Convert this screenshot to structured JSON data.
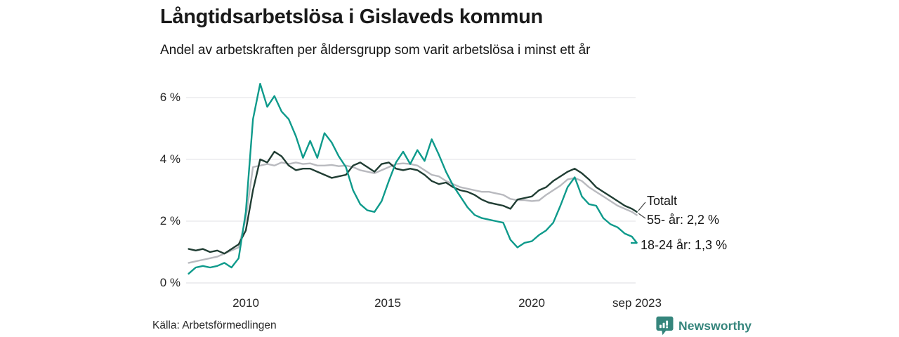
{
  "header": {
    "title": "Långtidsarbetslösa i Gislaveds kommun",
    "subtitle": "Andel av arbetskraften per åldersgrupp som varit arbetslösa i minst ett år"
  },
  "chart_data": {
    "type": "line",
    "title": "Långtidsarbetslösa i Gislaveds kommun",
    "subtitle": "Andel av arbetskraften per åldersgrupp som varit arbetslösa i minst ett år",
    "unit": "%",
    "grid": "horizontal",
    "ylim": [
      0,
      6.6
    ],
    "xlim": [
      2007.9,
      2023.8
    ],
    "y_ticks": [
      "0 %",
      "2 %",
      "4 %",
      "6 %"
    ],
    "y_tick_values": [
      0,
      2,
      4,
      6
    ],
    "x_ticks": [
      "2010",
      "2015",
      "2020",
      "sep 2023"
    ],
    "x_tick_values": [
      2010,
      2015,
      2020,
      2023.67
    ],
    "legend_position": "end-of-line-labels",
    "draw_order": [
      1,
      0,
      2
    ],
    "x": [
      2008.0,
      2008.25,
      2008.5,
      2008.75,
      2009.0,
      2009.25,
      2009.5,
      2009.75,
      2010.0,
      2010.25,
      2010.5,
      2010.75,
      2011.0,
      2011.25,
      2011.5,
      2011.75,
      2012.0,
      2012.25,
      2012.5,
      2012.75,
      2013.0,
      2013.25,
      2013.5,
      2013.75,
      2014.0,
      2014.25,
      2014.5,
      2014.75,
      2015.0,
      2015.25,
      2015.5,
      2015.75,
      2016.0,
      2016.25,
      2016.5,
      2016.75,
      2017.0,
      2017.25,
      2017.5,
      2017.75,
      2018.0,
      2018.25,
      2018.5,
      2018.75,
      2019.0,
      2019.25,
      2019.5,
      2019.75,
      2020.0,
      2020.25,
      2020.5,
      2020.75,
      2021.0,
      2021.25,
      2021.5,
      2021.75,
      2022.0,
      2022.25,
      2022.5,
      2022.75,
      2023.0,
      2023.25,
      2023.5,
      2023.67
    ],
    "series": [
      {
        "id": "totalt",
        "name": "Totalt",
        "end_label": "Totalt",
        "color": "#203d33",
        "values": [
          1.1,
          1.05,
          1.1,
          1.0,
          1.05,
          0.95,
          1.1,
          1.25,
          1.7,
          3.0,
          4.0,
          3.9,
          4.25,
          4.1,
          3.8,
          3.65,
          3.7,
          3.7,
          3.6,
          3.5,
          3.4,
          3.45,
          3.5,
          3.8,
          3.9,
          3.75,
          3.6,
          3.85,
          3.9,
          3.7,
          3.65,
          3.7,
          3.65,
          3.5,
          3.3,
          3.2,
          3.25,
          3.1,
          3.0,
          2.95,
          2.85,
          2.7,
          2.6,
          2.55,
          2.5,
          2.4,
          2.7,
          2.75,
          2.8,
          3.0,
          3.1,
          3.3,
          3.45,
          3.6,
          3.7,
          3.55,
          3.35,
          3.1,
          2.95,
          2.8,
          2.65,
          2.5,
          2.4,
          2.3
        ]
      },
      {
        "id": "55-ar",
        "name": "55- år",
        "end_label": "55- år: 2,2 %",
        "end_value": 2.2,
        "color": "#b9babf",
        "values": [
          0.65,
          0.7,
          0.75,
          0.8,
          0.85,
          0.95,
          1.05,
          1.15,
          2.1,
          3.75,
          3.8,
          3.85,
          3.8,
          3.9,
          3.85,
          3.9,
          3.85,
          3.87,
          3.8,
          3.8,
          3.82,
          3.78,
          3.8,
          3.75,
          3.65,
          3.6,
          3.55,
          3.65,
          3.75,
          3.85,
          3.87,
          3.85,
          3.8,
          3.65,
          3.5,
          3.45,
          3.3,
          3.2,
          3.1,
          3.05,
          3.0,
          2.95,
          2.95,
          2.9,
          2.85,
          2.72,
          2.68,
          2.68,
          2.65,
          2.67,
          2.85,
          3.0,
          3.15,
          3.35,
          3.4,
          3.3,
          3.1,
          2.95,
          2.8,
          2.65,
          2.5,
          2.4,
          2.3,
          2.2
        ]
      },
      {
        "id": "18-24-ar",
        "name": "18-24 år",
        "end_label": "18-24 år: 1,3 %",
        "end_value": 1.3,
        "color": "#0e9a8b",
        "values": [
          0.3,
          0.5,
          0.55,
          0.5,
          0.55,
          0.65,
          0.5,
          0.8,
          2.3,
          5.3,
          6.45,
          5.7,
          6.05,
          5.55,
          5.3,
          4.75,
          4.05,
          4.6,
          4.05,
          4.85,
          4.55,
          4.1,
          3.75,
          3.0,
          2.55,
          2.35,
          2.3,
          2.65,
          3.3,
          3.9,
          4.25,
          3.85,
          4.3,
          3.95,
          4.65,
          4.15,
          3.6,
          3.15,
          2.8,
          2.45,
          2.2,
          2.1,
          2.05,
          2.0,
          1.95,
          1.4,
          1.15,
          1.3,
          1.35,
          1.55,
          1.7,
          1.95,
          2.5,
          3.1,
          3.42,
          2.8,
          2.55,
          2.5,
          2.1,
          1.9,
          1.8,
          1.6,
          1.5,
          1.3
        ]
      }
    ]
  },
  "footer": {
    "source": "Källa: Arbetsförmedlingen",
    "brand_name": "Newsworthy",
    "brand_color": "#35857c"
  },
  "colors": {
    "background": "#ffffff",
    "grid": "#e8e8eb",
    "title_text": "#191919",
    "leader_line": "#3c3c3c"
  }
}
